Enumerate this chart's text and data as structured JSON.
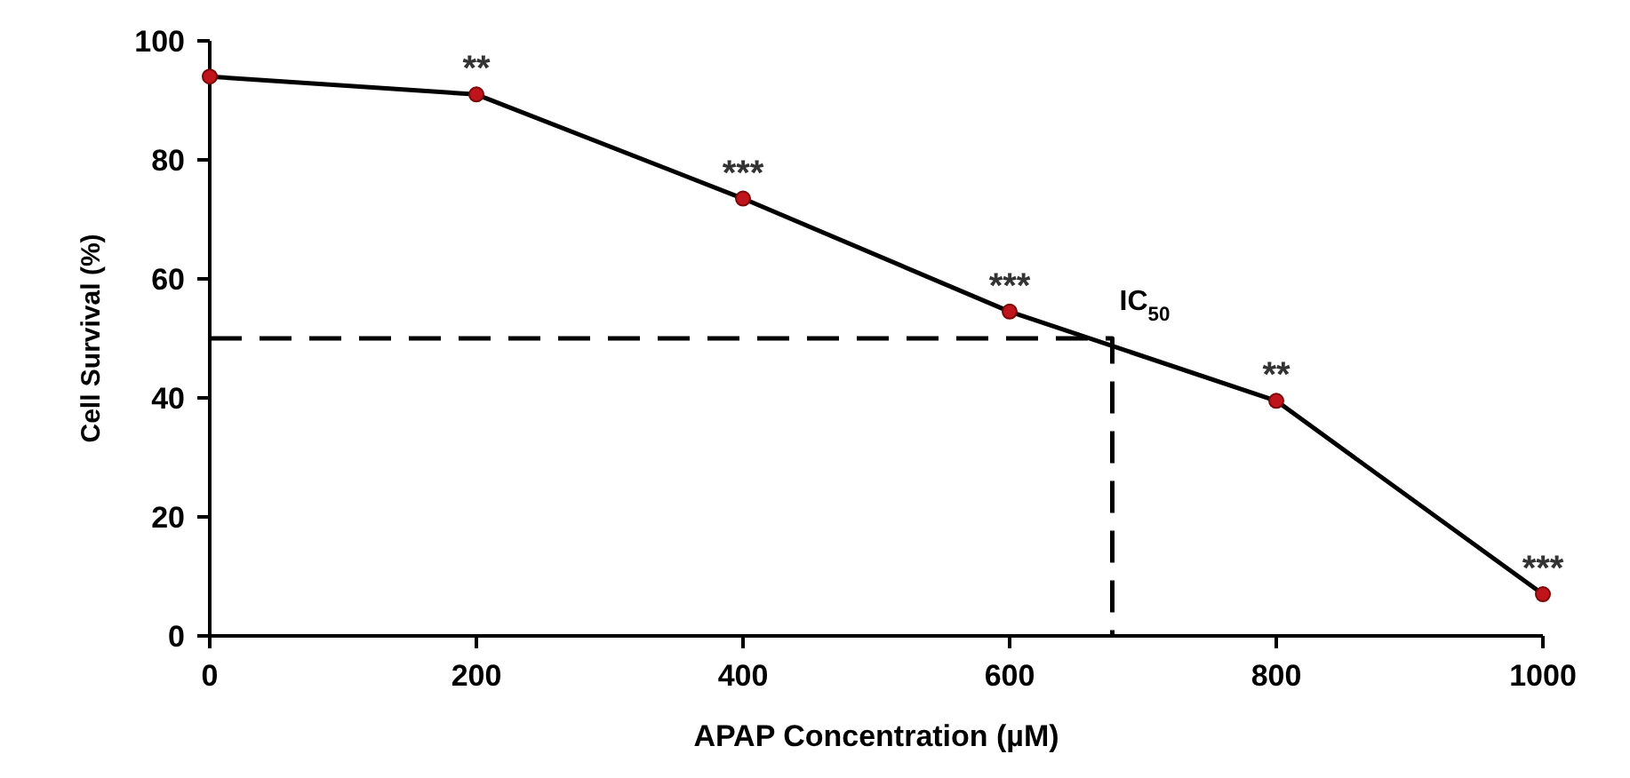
{
  "chart_data": {
    "type": "line",
    "xlabel": "APAP Concentration  (µM)",
    "ylabel": "Cell Survival (%)",
    "xlim": [
      0,
      1000
    ],
    "xticks": [
      0,
      200,
      400,
      600,
      800,
      1000
    ],
    "ylim": [
      0,
      100
    ],
    "yticks": [
      0,
      20,
      40,
      60,
      80,
      100
    ],
    "grid": false,
    "series": [
      {
        "x": [
          0,
          200,
          400,
          600,
          800,
          1000
        ],
        "values": [
          94,
          91,
          73.5,
          54.5,
          39.5,
          7
        ],
        "color": "#000000",
        "marker": "circle",
        "line_style": "solid"
      },
      {
        "x": [
          0,
          677,
          677
        ],
        "values": [
          50,
          50,
          0
        ],
        "color": "#000000",
        "marker": "none",
        "line_style": "dashed"
      }
    ],
    "annotations": [
      {
        "text": "**",
        "x": 200,
        "y": 91
      },
      {
        "text": "***",
        "x": 400,
        "y": 73.5
      },
      {
        "text": "***",
        "x": 600,
        "y": 54.5
      },
      {
        "text": "IC$_{50}$",
        "x": 677,
        "y": 50
      },
      {
        "text": "**",
        "x": 800,
        "y": 39.5
      },
      {
        "text": "***",
        "x": 1000,
        "y": 7
      }
    ]
  }
}
